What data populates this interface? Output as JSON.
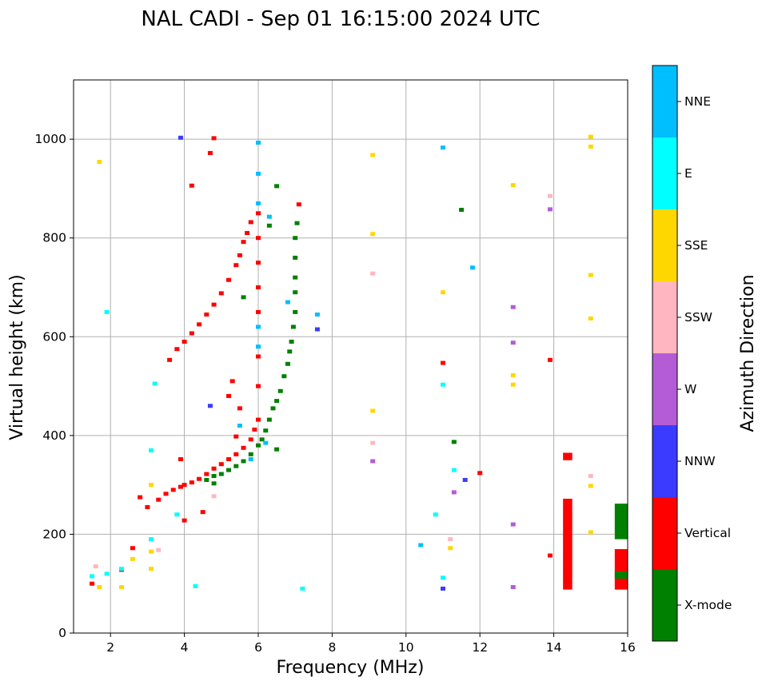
{
  "chart_data": {
    "type": "scatter",
    "title": "NAL CADI - Sep 01 16:15:00 2024 UTC",
    "xlabel": "Frequency (MHz)",
    "ylabel": "Virtual height (km)",
    "xlim": [
      1,
      16
    ],
    "ylim": [
      0,
      1120
    ],
    "x_ticks": [
      2,
      4,
      6,
      8,
      10,
      12,
      14,
      16
    ],
    "y_ticks": [
      0,
      200,
      400,
      600,
      800,
      1000
    ],
    "grid": true,
    "colorbar": {
      "title": "Azimuth Direction",
      "categories": [
        {
          "name": "X-mode",
          "color": "#008000"
        },
        {
          "name": "Vertical",
          "color": "#ff0000"
        },
        {
          "name": "NNW",
          "color": "#3b3bff"
        },
        {
          "name": "W",
          "color": "#b45cd6"
        },
        {
          "name": "SSW",
          "color": "#ffb6c1"
        },
        {
          "name": "SSE",
          "color": "#ffd700"
        },
        {
          "name": "E",
          "color": "#00ffff"
        },
        {
          "name": "NNE",
          "color": "#00bfff"
        }
      ]
    },
    "series": [
      {
        "name": "Vertical",
        "color": "#ff0000",
        "points": [
          [
            1.5,
            100
          ],
          [
            2.3,
            128
          ],
          [
            2.6,
            172
          ],
          [
            2.8,
            275
          ],
          [
            3.0,
            255
          ],
          [
            3.3,
            270
          ],
          [
            3.5,
            282
          ],
          [
            3.7,
            290
          ],
          [
            3.9,
            296
          ],
          [
            4.0,
            300
          ],
          [
            4.2,
            305
          ],
          [
            4.4,
            312
          ],
          [
            4.6,
            322
          ],
          [
            4.8,
            333
          ],
          [
            5.0,
            342
          ],
          [
            5.2,
            352
          ],
          [
            5.4,
            362
          ],
          [
            5.6,
            375
          ],
          [
            5.8,
            392
          ],
          [
            5.9,
            412
          ],
          [
            6.0,
            432
          ],
          [
            3.6,
            553
          ],
          [
            3.8,
            575
          ],
          [
            4.0,
            590
          ],
          [
            4.2,
            607
          ],
          [
            4.4,
            625
          ],
          [
            4.6,
            645
          ],
          [
            4.8,
            665
          ],
          [
            5.0,
            688
          ],
          [
            5.2,
            715
          ],
          [
            5.4,
            745
          ],
          [
            5.5,
            765
          ],
          [
            5.6,
            792
          ],
          [
            5.7,
            810
          ],
          [
            5.8,
            832
          ],
          [
            6.0,
            850
          ],
          [
            6.0,
            800
          ],
          [
            6.0,
            750
          ],
          [
            6.0,
            700
          ],
          [
            6.0,
            650
          ],
          [
            6.0,
            560
          ],
          [
            6.0,
            500
          ],
          [
            4.2,
            906
          ],
          [
            4.7,
            972
          ],
          [
            4.8,
            1002
          ],
          [
            3.9,
            352
          ],
          [
            4.0,
            228
          ],
          [
            4.5,
            245
          ],
          [
            5.2,
            480
          ],
          [
            5.3,
            510
          ],
          [
            5.5,
            455
          ],
          [
            5.4,
            398
          ],
          [
            11.0,
            547
          ],
          [
            12.0,
            324
          ],
          [
            13.9,
            553
          ],
          [
            13.9,
            157
          ],
          [
            7.1,
            868
          ]
        ]
      },
      {
        "name": "X-mode",
        "color": "#008000",
        "points": [
          [
            4.6,
            310
          ],
          [
            4.8,
            318
          ],
          [
            5.0,
            322
          ],
          [
            5.2,
            330
          ],
          [
            5.4,
            338
          ],
          [
            5.6,
            348
          ],
          [
            5.8,
            362
          ],
          [
            6.0,
            380
          ],
          [
            6.1,
            392
          ],
          [
            6.2,
            410
          ],
          [
            6.3,
            432
          ],
          [
            6.4,
            455
          ],
          [
            6.5,
            470
          ],
          [
            6.6,
            490
          ],
          [
            6.7,
            520
          ],
          [
            6.8,
            545
          ],
          [
            6.85,
            570
          ],
          [
            6.9,
            590
          ],
          [
            6.95,
            620
          ],
          [
            7.0,
            650
          ],
          [
            7.0,
            690
          ],
          [
            7.0,
            720
          ],
          [
            7.0,
            760
          ],
          [
            7.0,
            800
          ],
          [
            7.05,
            830
          ],
          [
            6.3,
            825
          ],
          [
            6.5,
            905
          ],
          [
            6.5,
            372
          ],
          [
            5.6,
            680
          ],
          [
            4.8,
            303
          ],
          [
            11.5,
            857
          ],
          [
            11.3,
            387
          ]
        ]
      },
      {
        "name": "NNW",
        "color": "#3b3bff",
        "points": [
          [
            3.9,
            1003
          ],
          [
            4.7,
            460
          ],
          [
            7.6,
            615
          ],
          [
            11.0,
            90
          ],
          [
            11.6,
            310
          ]
        ]
      },
      {
        "name": "W",
        "color": "#b45cd6",
        "points": [
          [
            9.1,
            348
          ],
          [
            12.9,
            660
          ],
          [
            12.9,
            588
          ],
          [
            12.9,
            220
          ],
          [
            12.9,
            93
          ],
          [
            13.9,
            858
          ],
          [
            11.3,
            285
          ]
        ]
      },
      {
        "name": "SSW",
        "color": "#ffb6c1",
        "points": [
          [
            9.1,
            728
          ],
          [
            9.1,
            385
          ],
          [
            11.2,
            190
          ],
          [
            13.9,
            885
          ],
          [
            15.0,
            318
          ],
          [
            4.8,
            277
          ],
          [
            3.3,
            168
          ],
          [
            1.6,
            135
          ]
        ]
      },
      {
        "name": "SSE",
        "color": "#ffd700",
        "points": [
          [
            1.7,
            93
          ],
          [
            2.3,
            93
          ],
          [
            2.6,
            150
          ],
          [
            3.1,
            165
          ],
          [
            3.1,
            130
          ],
          [
            3.1,
            300
          ],
          [
            9.1,
            968
          ],
          [
            9.1,
            808
          ],
          [
            9.1,
            450
          ],
          [
            11.0,
            690
          ],
          [
            11.2,
            172
          ],
          [
            12.9,
            907
          ],
          [
            12.9,
            522
          ],
          [
            12.9,
            503
          ],
          [
            15.0,
            1005
          ],
          [
            15.0,
            985
          ],
          [
            15.0,
            725
          ],
          [
            15.0,
            637
          ],
          [
            15.0,
            298
          ],
          [
            15.0,
            204
          ],
          [
            1.7,
            954
          ]
        ]
      },
      {
        "name": "E",
        "color": "#00ffff",
        "points": [
          [
            1.5,
            115
          ],
          [
            1.9,
            120
          ],
          [
            2.3,
            130
          ],
          [
            3.1,
            370
          ],
          [
            3.1,
            190
          ],
          [
            3.2,
            505
          ],
          [
            3.8,
            240
          ],
          [
            4.3,
            95
          ],
          [
            1.9,
            650
          ],
          [
            10.8,
            240
          ],
          [
            11.0,
            503
          ],
          [
            11.0,
            112
          ],
          [
            11.3,
            330
          ],
          [
            7.2,
            90
          ]
        ]
      },
      {
        "name": "NNE",
        "color": "#00bfff",
        "points": [
          [
            6.0,
            993
          ],
          [
            6.0,
            930
          ],
          [
            6.0,
            870
          ],
          [
            6.0,
            620
          ],
          [
            6.0,
            580
          ],
          [
            6.3,
            843
          ],
          [
            6.8,
            670
          ],
          [
            7.6,
            645
          ],
          [
            11.0,
            983
          ],
          [
            11.8,
            740
          ],
          [
            10.4,
            178
          ],
          [
            5.8,
            352
          ],
          [
            5.5,
            420
          ],
          [
            6.2,
            385
          ]
        ]
      }
    ],
    "bars": [
      {
        "series": "Vertical",
        "x0": 14.25,
        "x1": 14.5,
        "y0": 88,
        "y1": 272
      },
      {
        "series": "Vertical",
        "x0": 14.25,
        "x1": 14.5,
        "y0": 350,
        "y1": 365
      },
      {
        "series": "X-mode",
        "x0": 15.65,
        "x1": 16.0,
        "y0": 190,
        "y1": 262
      },
      {
        "series": "Vertical",
        "x0": 15.65,
        "x1": 16.0,
        "y0": 88,
        "y1": 170
      },
      {
        "series": "X-mode",
        "x0": 15.65,
        "x1": 16.0,
        "y0": 110,
        "y1": 125
      }
    ]
  }
}
